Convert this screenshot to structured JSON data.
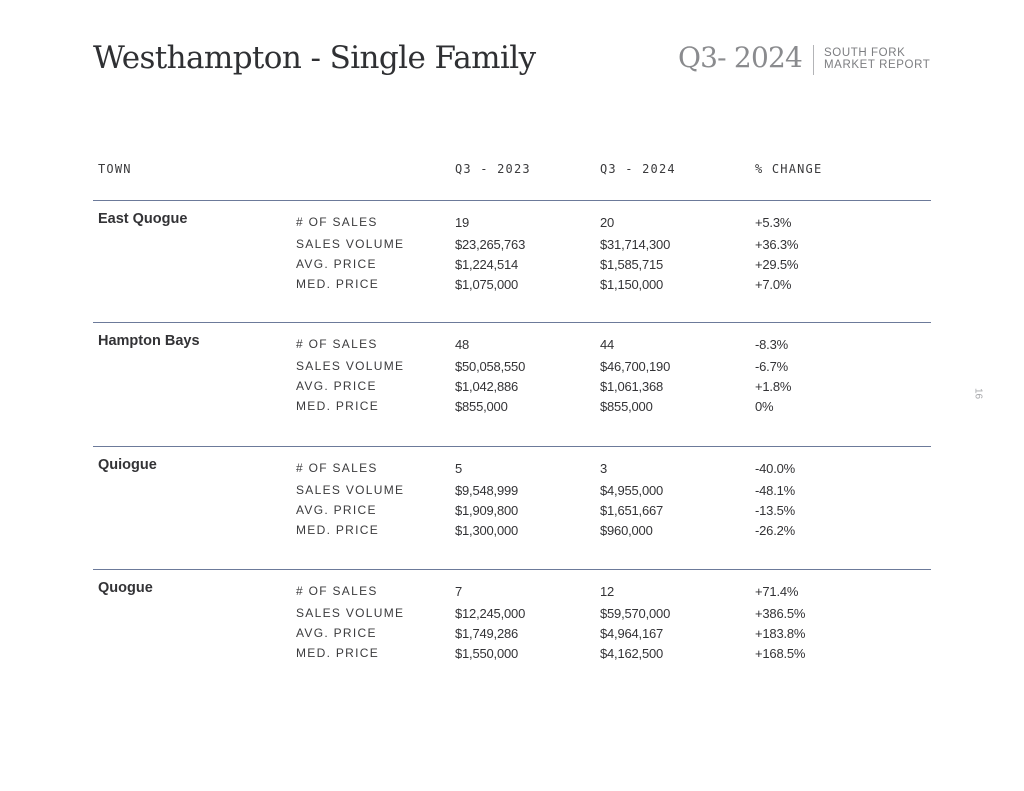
{
  "header": {
    "title": "Westhampton - Single Family",
    "quarter": "Q3- 2024",
    "report_line1": "SOUTH FORK",
    "report_line2": "MARKET REPORT"
  },
  "page_number": "16",
  "table": {
    "columns": [
      "TOWN",
      "Q3 - 2023",
      "Q3 - 2024",
      "% CHANGE"
    ],
    "metric_labels": [
      "# OF SALES",
      "SALES VOLUME",
      "AVG. PRICE",
      "MED. PRICE"
    ],
    "towns": [
      {
        "name": "East Quogue",
        "rows": [
          [
            "19",
            "20",
            "+5.3%"
          ],
          [
            "$23,265,763",
            "$31,714,300",
            "+36.3%"
          ],
          [
            "$1,224,514",
            "$1,585,715",
            "+29.5%"
          ],
          [
            "$1,075,000",
            "$1,150,000",
            "+7.0%"
          ]
        ]
      },
      {
        "name": "Hampton Bays",
        "rows": [
          [
            "48",
            "44",
            "-8.3%"
          ],
          [
            "$50,058,550",
            "$46,700,190",
            "-6.7%"
          ],
          [
            "$1,042,886",
            "$1,061,368",
            "+1.8%"
          ],
          [
            "$855,000",
            "$855,000",
            "0%"
          ]
        ]
      },
      {
        "name": "Quiogue",
        "rows": [
          [
            "5",
            "3",
            "-40.0%"
          ],
          [
            "$9,548,999",
            "$4,955,000",
            "-48.1%"
          ],
          [
            "$1,909,800",
            "$1,651,667",
            "-13.5%"
          ],
          [
            "$1,300,000",
            "$960,000",
            "-26.2%"
          ]
        ]
      },
      {
        "name": "Quogue",
        "rows": [
          [
            "7",
            "12",
            "+71.4%"
          ],
          [
            "$12,245,000",
            "$59,570,000",
            "+386.5%"
          ],
          [
            "$1,749,286",
            "$4,964,167",
            "+183.8%"
          ],
          [
            "$1,550,000",
            "$4,162,500",
            "+168.5%"
          ]
        ]
      }
    ]
  }
}
